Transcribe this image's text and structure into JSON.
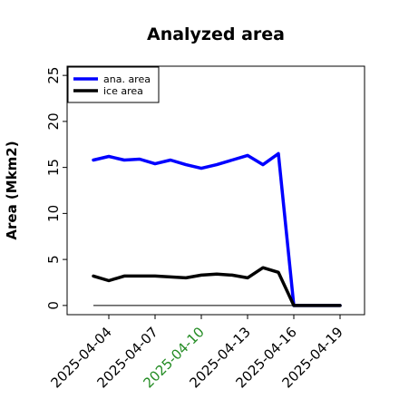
{
  "chart_data": {
    "type": "line",
    "title": "Analyzed area",
    "xlabel": "",
    "ylabel": "Area (Mkm2)",
    "ylim": [
      -1,
      26
    ],
    "yticks": [
      0,
      5,
      10,
      15,
      20,
      25
    ],
    "grid": false,
    "legend_position": "top-left",
    "x": [
      "2025-04-03",
      "2025-04-04",
      "2025-04-05",
      "2025-04-06",
      "2025-04-07",
      "2025-04-08",
      "2025-04-09",
      "2025-04-10",
      "2025-04-11",
      "2025-04-12",
      "2025-04-13",
      "2025-04-14",
      "2025-04-15",
      "2025-04-16",
      "2025-04-17",
      "2025-04-18",
      "2025-04-19"
    ],
    "xticks": [
      {
        "label": "2025-04-04",
        "color": "#000000"
      },
      {
        "label": "2025-04-07",
        "color": "#000000"
      },
      {
        "label": "2025-04-10",
        "color": "#228b22"
      },
      {
        "label": "2025-04-13",
        "color": "#000000"
      },
      {
        "label": "2025-04-16",
        "color": "#000000"
      },
      {
        "label": "2025-04-19",
        "color": "#000000"
      }
    ],
    "series": [
      {
        "name": "ana. area",
        "color": "#0000ff",
        "values": [
          15.8,
          16.2,
          15.8,
          15.9,
          15.4,
          15.8,
          15.3,
          14.9,
          15.3,
          15.8,
          16.3,
          15.3,
          16.5,
          0,
          0,
          0,
          0
        ]
      },
      {
        "name": "ice area",
        "color": "#000000",
        "values": [
          3.2,
          2.7,
          3.2,
          3.2,
          3.2,
          3.1,
          3.0,
          3.3,
          3.4,
          3.3,
          3.0,
          4.1,
          3.6,
          0,
          0,
          0,
          0
        ]
      }
    ],
    "reference_line": {
      "y": 0,
      "from": "2025-04-03",
      "to": "2025-04-19",
      "color": "#000000"
    }
  }
}
